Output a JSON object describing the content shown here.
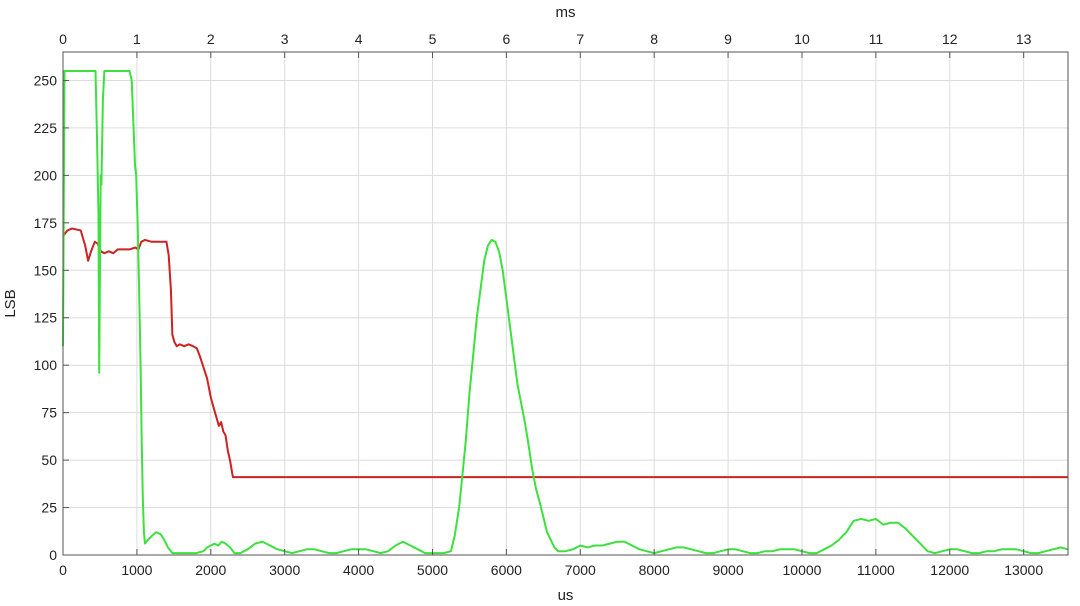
{
  "chart_data": {
    "type": "line",
    "title": "",
    "xlabel": "us",
    "ylabel": "LSB",
    "x2label": "ms",
    "xlim": [
      0,
      13600
    ],
    "ylim": [
      0,
      265
    ],
    "x2lim": [
      0,
      13.6
    ],
    "grid": true,
    "xticks": [
      0,
      1000,
      2000,
      3000,
      4000,
      5000,
      6000,
      7000,
      8000,
      9000,
      10000,
      11000,
      12000,
      13000
    ],
    "xtick_labels": [
      "0",
      "1000",
      "2000",
      "3000",
      "4000",
      "5000",
      "6000",
      "7000",
      "8000",
      "9000",
      "10000",
      "11000",
      "12000",
      "13000"
    ],
    "yticks": [
      0,
      25,
      50,
      75,
      100,
      125,
      150,
      175,
      200,
      225,
      250
    ],
    "ytick_labels": [
      "0",
      "25",
      "50",
      "75",
      "100",
      "125",
      "150",
      "175",
      "200",
      "225",
      "250"
    ],
    "x2ticks": [
      0,
      1,
      2,
      3,
      4,
      5,
      6,
      7,
      8,
      9,
      10,
      11,
      12,
      13
    ],
    "x2tick_labels": [
      "0",
      "1",
      "2",
      "3",
      "4",
      "5",
      "6",
      "7",
      "8",
      "9",
      "10",
      "11",
      "12",
      "13"
    ],
    "series": [
      {
        "color": "#cc2222",
        "points": [
          [
            0,
            168
          ],
          [
            60,
            171
          ],
          [
            120,
            172
          ],
          [
            240,
            171
          ],
          [
            300,
            163
          ],
          [
            340,
            155
          ],
          [
            380,
            160
          ],
          [
            430,
            165
          ],
          [
            470,
            164
          ],
          [
            510,
            160
          ],
          [
            560,
            159
          ],
          [
            620,
            160
          ],
          [
            680,
            159
          ],
          [
            740,
            161
          ],
          [
            820,
            161
          ],
          [
            900,
            161
          ],
          [
            980,
            162
          ],
          [
            1020,
            161
          ],
          [
            1060,
            165
          ],
          [
            1110,
            166
          ],
          [
            1200,
            165
          ],
          [
            1300,
            165
          ],
          [
            1400,
            165
          ],
          [
            1430,
            158
          ],
          [
            1460,
            140
          ],
          [
            1480,
            116
          ],
          [
            1510,
            112
          ],
          [
            1540,
            110
          ],
          [
            1580,
            111
          ],
          [
            1640,
            110
          ],
          [
            1700,
            111
          ],
          [
            1760,
            110
          ],
          [
            1810,
            109
          ],
          [
            1850,
            105
          ],
          [
            1900,
            99
          ],
          [
            1950,
            93
          ],
          [
            2000,
            83
          ],
          [
            2050,
            76
          ],
          [
            2080,
            72
          ],
          [
            2110,
            68
          ],
          [
            2140,
            70
          ],
          [
            2170,
            65
          ],
          [
            2200,
            63
          ],
          [
            2230,
            55
          ],
          [
            2260,
            50
          ],
          [
            2290,
            43
          ],
          [
            2300,
            41
          ],
          [
            2400,
            41
          ],
          [
            3000,
            41
          ],
          [
            4000,
            41
          ],
          [
            5000,
            41
          ],
          [
            6000,
            41
          ],
          [
            7000,
            41
          ],
          [
            8000,
            41
          ],
          [
            9000,
            41
          ],
          [
            10000,
            41
          ],
          [
            11000,
            41
          ],
          [
            12000,
            41
          ],
          [
            13000,
            41
          ],
          [
            13600,
            41
          ]
        ]
      },
      {
        "color": "#3ee03e",
        "points": [
          [
            0,
            110
          ],
          [
            20,
            255
          ],
          [
            100,
            255
          ],
          [
            200,
            255
          ],
          [
            300,
            255
          ],
          [
            380,
            255
          ],
          [
            440,
            255
          ],
          [
            460,
            220
          ],
          [
            470,
            200
          ],
          [
            480,
            180
          ],
          [
            490,
            96
          ],
          [
            500,
            150
          ],
          [
            510,
            200
          ],
          [
            520,
            195
          ],
          [
            540,
            240
          ],
          [
            560,
            255
          ],
          [
            650,
            255
          ],
          [
            750,
            255
          ],
          [
            850,
            255
          ],
          [
            900,
            255
          ],
          [
            930,
            250
          ],
          [
            950,
            230
          ],
          [
            975,
            205
          ],
          [
            990,
            200
          ],
          [
            1010,
            175
          ],
          [
            1030,
            140
          ],
          [
            1050,
            100
          ],
          [
            1065,
            60
          ],
          [
            1080,
            30
          ],
          [
            1095,
            12
          ],
          [
            1110,
            6
          ],
          [
            1150,
            8
          ],
          [
            1200,
            10
          ],
          [
            1260,
            12
          ],
          [
            1320,
            11
          ],
          [
            1370,
            8
          ],
          [
            1420,
            4
          ],
          [
            1480,
            1
          ],
          [
            1600,
            1
          ],
          [
            1700,
            1
          ],
          [
            1800,
            1
          ],
          [
            1900,
            2
          ],
          [
            1950,
            4
          ],
          [
            2000,
            5
          ],
          [
            2050,
            6
          ],
          [
            2100,
            5
          ],
          [
            2150,
            7
          ],
          [
            2200,
            6
          ],
          [
            2260,
            4
          ],
          [
            2320,
            1
          ],
          [
            2400,
            1
          ],
          [
            2500,
            3
          ],
          [
            2600,
            6
          ],
          [
            2700,
            7
          ],
          [
            2800,
            5
          ],
          [
            2900,
            3
          ],
          [
            3000,
            2
          ],
          [
            3100,
            1
          ],
          [
            3200,
            2
          ],
          [
            3300,
            3
          ],
          [
            3400,
            3
          ],
          [
            3500,
            2
          ],
          [
            3600,
            1
          ],
          [
            3700,
            1
          ],
          [
            3800,
            2
          ],
          [
            3900,
            3
          ],
          [
            4000,
            3
          ],
          [
            4100,
            3
          ],
          [
            4200,
            2
          ],
          [
            4300,
            1
          ],
          [
            4400,
            2
          ],
          [
            4500,
            5
          ],
          [
            4600,
            7
          ],
          [
            4700,
            5
          ],
          [
            4800,
            3
          ],
          [
            4900,
            1
          ],
          [
            5000,
            1
          ],
          [
            5150,
            1
          ],
          [
            5250,
            2
          ],
          [
            5300,
            10
          ],
          [
            5360,
            25
          ],
          [
            5400,
            40
          ],
          [
            5450,
            60
          ],
          [
            5500,
            85
          ],
          [
            5550,
            105
          ],
          [
            5600,
            125
          ],
          [
            5650,
            140
          ],
          [
            5700,
            155
          ],
          [
            5750,
            163
          ],
          [
            5800,
            166
          ],
          [
            5850,
            165
          ],
          [
            5900,
            160
          ],
          [
            5950,
            150
          ],
          [
            6000,
            135
          ],
          [
            6050,
            120
          ],
          [
            6100,
            105
          ],
          [
            6150,
            90
          ],
          [
            6200,
            80
          ],
          [
            6250,
            70
          ],
          [
            6300,
            58
          ],
          [
            6350,
            45
          ],
          [
            6400,
            35
          ],
          [
            6450,
            28
          ],
          [
            6500,
            20
          ],
          [
            6550,
            12
          ],
          [
            6600,
            8
          ],
          [
            6650,
            4
          ],
          [
            6700,
            2
          ],
          [
            6800,
            2
          ],
          [
            6900,
            3
          ],
          [
            7000,
            5
          ],
          [
            7100,
            4
          ],
          [
            7200,
            5
          ],
          [
            7300,
            5
          ],
          [
            7400,
            6
          ],
          [
            7500,
            7
          ],
          [
            7600,
            7
          ],
          [
            7700,
            5
          ],
          [
            7800,
            3
          ],
          [
            7900,
            2
          ],
          [
            8000,
            1
          ],
          [
            8100,
            2
          ],
          [
            8200,
            3
          ],
          [
            8300,
            4
          ],
          [
            8400,
            4
          ],
          [
            8500,
            3
          ],
          [
            8600,
            2
          ],
          [
            8700,
            1
          ],
          [
            8800,
            1
          ],
          [
            8900,
            2
          ],
          [
            9000,
            3
          ],
          [
            9100,
            3
          ],
          [
            9200,
            2
          ],
          [
            9300,
            1
          ],
          [
            9400,
            1
          ],
          [
            9500,
            2
          ],
          [
            9600,
            2
          ],
          [
            9700,
            3
          ],
          [
            9800,
            3
          ],
          [
            9900,
            3
          ],
          [
            10000,
            2
          ],
          [
            10100,
            1
          ],
          [
            10200,
            1
          ],
          [
            10300,
            3
          ],
          [
            10400,
            5
          ],
          [
            10500,
            8
          ],
          [
            10600,
            12
          ],
          [
            10700,
            18
          ],
          [
            10800,
            19
          ],
          [
            10900,
            18
          ],
          [
            11000,
            19
          ],
          [
            11100,
            16
          ],
          [
            11200,
            17
          ],
          [
            11300,
            17
          ],
          [
            11400,
            14
          ],
          [
            11500,
            10
          ],
          [
            11600,
            6
          ],
          [
            11700,
            2
          ],
          [
            11800,
            1
          ],
          [
            11900,
            2
          ],
          [
            12000,
            3
          ],
          [
            12100,
            3
          ],
          [
            12200,
            2
          ],
          [
            12300,
            1
          ],
          [
            12400,
            1
          ],
          [
            12500,
            2
          ],
          [
            12600,
            2
          ],
          [
            12700,
            3
          ],
          [
            12800,
            3
          ],
          [
            12900,
            3
          ],
          [
            13000,
            2
          ],
          [
            13100,
            1
          ],
          [
            13200,
            1
          ],
          [
            13300,
            2
          ],
          [
            13400,
            3
          ],
          [
            13500,
            4
          ],
          [
            13600,
            3
          ]
        ]
      }
    ]
  }
}
